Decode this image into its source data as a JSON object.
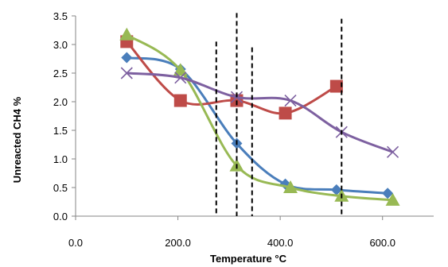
{
  "chart_data": {
    "type": "line",
    "xlabel": "Temperature °C",
    "ylabel": "Unreacted CH4 %",
    "xlim": [
      0,
      700
    ],
    "ylim": [
      0,
      3.5
    ],
    "x_ticks": [
      "0.0",
      "200.0",
      "400.0",
      "600.0"
    ],
    "y_ticks": [
      "0.0",
      "0.5",
      "1.0",
      "1.5",
      "2.0",
      "2.5",
      "3.0",
      "3.5"
    ],
    "x_tick_values": [
      0,
      200,
      400,
      600
    ],
    "y_tick_values": [
      0,
      0.5,
      1.0,
      1.5,
      2.0,
      2.5,
      3.0,
      3.5
    ],
    "grid": false,
    "legend": "none",
    "series": [
      {
        "marker": "diamond",
        "color": "#4a7ebb",
        "points": [
          [
            100,
            2.77
          ],
          [
            205,
            2.57
          ],
          [
            315,
            1.27
          ],
          [
            410,
            0.56
          ],
          [
            510,
            0.46
          ],
          [
            610,
            0.4
          ]
        ]
      },
      {
        "marker": "square",
        "color": "#be4b48",
        "points": [
          [
            100,
            3.05
          ],
          [
            205,
            2.02
          ],
          [
            315,
            2.02
          ],
          [
            410,
            1.8
          ],
          [
            510,
            2.27
          ]
        ]
      },
      {
        "marker": "triangle",
        "color": "#98b954",
        "points": [
          [
            100,
            3.17
          ],
          [
            205,
            2.55
          ],
          [
            315,
            0.88
          ],
          [
            420,
            0.5
          ],
          [
            520,
            0.35
          ],
          [
            620,
            0.28
          ]
        ]
      },
      {
        "marker": "x",
        "color": "#7d60a0",
        "points": [
          [
            100,
            2.5
          ],
          [
            205,
            2.42
          ],
          [
            315,
            2.08
          ],
          [
            420,
            2.02
          ],
          [
            520,
            1.47
          ],
          [
            620,
            1.12
          ]
        ]
      }
    ],
    "reference_lines": [
      {
        "x": 275,
        "y_top": 3.05
      },
      {
        "x": 315,
        "y_top": 3.55
      },
      {
        "x": 345,
        "y_top": 2.95
      },
      {
        "x": 520,
        "y_top": 3.45
      }
    ]
  }
}
